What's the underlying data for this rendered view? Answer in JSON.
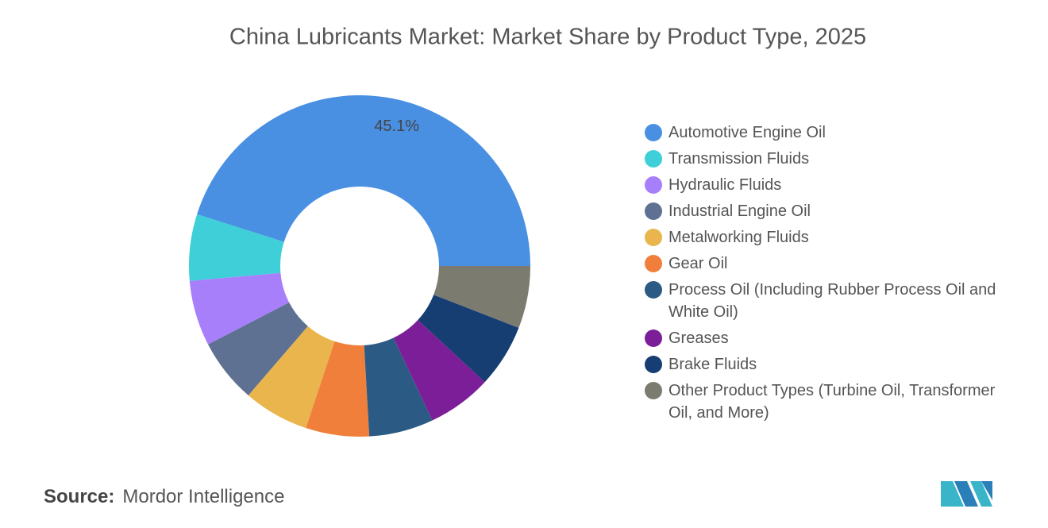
{
  "chart_data": {
    "type": "donut",
    "title": "China Lubricants Market: Market Share by Product Type, 2025",
    "categories": [
      "Automotive Engine Oil",
      "Transmission Fluids",
      "Hydraulic Fluids",
      "Industrial Engine Oil",
      "Metalworking Fluids",
      "Gear Oil",
      "Process Oil (Including Rubber Process Oil and White Oil)",
      "Greases",
      "Brake Fluids",
      "Other Product Types (Turbine Oil, Transformer Oil, and More)"
    ],
    "values": [
      45.1,
      6.3,
      6.2,
      6.1,
      6.2,
      6.0,
      6.1,
      6.1,
      6.0,
      5.9
    ],
    "value_labels": [
      "45.1%",
      null,
      null,
      null,
      null,
      null,
      null,
      null,
      null,
      null
    ],
    "colors": [
      "#4a90e2",
      "#3ecfd9",
      "#a87ffb",
      "#5e7193",
      "#e9b54c",
      "#f07f3c",
      "#2b5b84",
      "#7d1e99",
      "#173e72",
      "#7b7b70"
    ],
    "legend": "right"
  },
  "footer": {
    "source_label": "Source:",
    "source": "Mordor Intelligence"
  }
}
